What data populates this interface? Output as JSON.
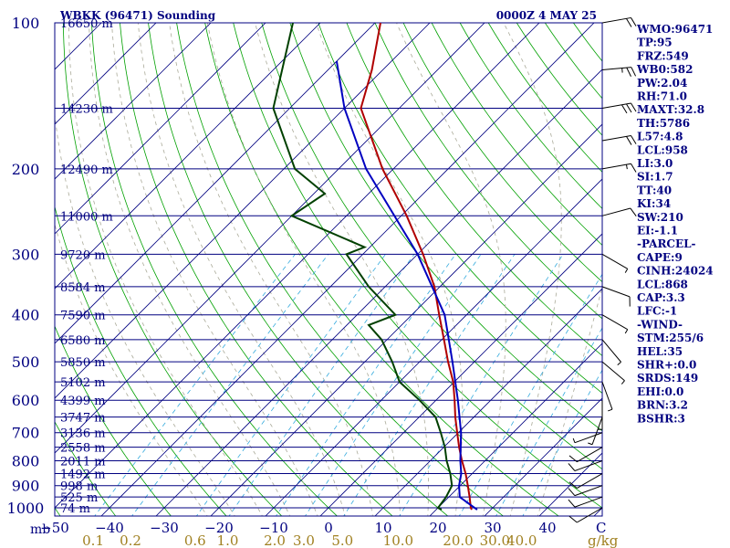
{
  "header": {
    "station": "WBKK (96471) Sounding",
    "time": "0000Z  4 MAY 25"
  },
  "colors": {
    "frame": "#000080",
    "temperature": "#b00000",
    "dewpoint": "#004000",
    "parcel": "#0000c0",
    "dry_adiabat": "#00a000",
    "moist_adiabat": "#aaaa99",
    "mixing_ratio": "#33aadd",
    "mixing_ratio_labels": "#a08020"
  },
  "chart_data": {
    "type": "line",
    "title": "WBKK (96471) Sounding",
    "xlabel": "",
    "ylabel": "mb",
    "pressure_ticks": [
      100,
      200,
      300,
      400,
      500,
      600,
      700,
      800,
      900,
      1000
    ],
    "temperature_ticks": [
      -50,
      -40,
      -30,
      -20,
      -10,
      0,
      10,
      20,
      30,
      40
    ],
    "temperature_axis_end_label": "C",
    "mixing_ratio_ticks": [
      "0.1",
      "0.2",
      "0.6",
      "1.0",
      "2.0",
      "3.0",
      "5.0",
      "10.0",
      "20.0",
      "30.0",
      "40.0"
    ],
    "mixing_ratio_values": [
      0.1,
      0.2,
      0.6,
      1.0,
      2.0,
      3.0,
      5.0,
      10.0,
      20.0,
      30.0,
      40.0
    ],
    "mixing_ratio_unit": "g/kg",
    "height_levels": [
      {
        "p": 100,
        "label": "16650 m"
      },
      {
        "p": 150,
        "label": "14230 m"
      },
      {
        "p": 200,
        "label": "12490 m"
      },
      {
        "p": 250,
        "label": "11000 m"
      },
      {
        "p": 300,
        "label": "9720 m"
      },
      {
        "p": 350,
        "label": "8584 m"
      },
      {
        "p": 400,
        "label": "7590 m"
      },
      {
        "p": 450,
        "label": "6580 m"
      },
      {
        "p": 500,
        "label": "5850 m"
      },
      {
        "p": 550,
        "label": "5102 m"
      },
      {
        "p": 600,
        "label": "4399 m"
      },
      {
        "p": 650,
        "label": "3747 m"
      },
      {
        "p": 700,
        "label": "3136 m"
      },
      {
        "p": 750,
        "label": "2558 m"
      },
      {
        "p": 800,
        "label": "2011 m"
      },
      {
        "p": 850,
        "label": "1492 m"
      },
      {
        "p": 900,
        "label": "998 m"
      },
      {
        "p": 950,
        "label": "525 m"
      },
      {
        "p": 1000,
        "label": "74 m"
      }
    ],
    "series": [
      {
        "name": "",
        "role": "temperature",
        "points": [
          {
            "p": 1009,
            "t": 26.5
          },
          {
            "p": 1000,
            "t": 26.0
          },
          {
            "p": 950,
            "t": 23.8
          },
          {
            "p": 900,
            "t": 21.4
          },
          {
            "p": 850,
            "t": 18.8
          },
          {
            "p": 800,
            "t": 15.8
          },
          {
            "p": 750,
            "t": 12.8
          },
          {
            "p": 700,
            "t": 9.8
          },
          {
            "p": 650,
            "t": 6.6
          },
          {
            "p": 600,
            "t": 3.4
          },
          {
            "p": 550,
            "t": -0.2
          },
          {
            "p": 500,
            "t": -4.8
          },
          {
            "p": 450,
            "t": -9.6
          },
          {
            "p": 400,
            "t": -15.0
          },
          {
            "p": 350,
            "t": -21.0
          },
          {
            "p": 300,
            "t": -29.0
          },
          {
            "p": 250,
            "t": -39.0
          },
          {
            "p": 200,
            "t": -52.0
          },
          {
            "p": 150,
            "t": -67.0
          },
          {
            "p": 125,
            "t": -72.0
          },
          {
            "p": 100,
            "t": -79.0
          }
        ]
      },
      {
        "name": "",
        "role": "dewpoint",
        "points": [
          {
            "p": 1009,
            "t": 21.0
          },
          {
            "p": 1000,
            "t": 20.0
          },
          {
            "p": 950,
            "t": 19.5
          },
          {
            "p": 900,
            "t": 18.5
          },
          {
            "p": 850,
            "t": 16.0
          },
          {
            "p": 800,
            "t": 13.0
          },
          {
            "p": 750,
            "t": 10.2
          },
          {
            "p": 700,
            "t": 6.8
          },
          {
            "p": 650,
            "t": 3.0
          },
          {
            "p": 600,
            "t": -3.0
          },
          {
            "p": 550,
            "t": -10.0
          },
          {
            "p": 500,
            "t": -15.0
          },
          {
            "p": 450,
            "t": -21.0
          },
          {
            "p": 420,
            "t": -26.0
          },
          {
            "p": 400,
            "t": -23.0
          },
          {
            "p": 350,
            "t": -33.0
          },
          {
            "p": 300,
            "t": -43.0
          },
          {
            "p": 290,
            "t": -41.0
          },
          {
            "p": 250,
            "t": -60.0
          },
          {
            "p": 225,
            "t": -58.0
          },
          {
            "p": 200,
            "t": -68.0
          },
          {
            "p": 150,
            "t": -83.0
          },
          {
            "p": 100,
            "t": -95.0
          }
        ]
      },
      {
        "name": "",
        "role": "parcel",
        "points": [
          {
            "p": 1009,
            "t": 27.5
          },
          {
            "p": 950,
            "t": 22.0
          },
          {
            "p": 900,
            "t": 19.8
          },
          {
            "p": 850,
            "t": 18.0
          },
          {
            "p": 800,
            "t": 15.5
          },
          {
            "p": 700,
            "t": 10.5
          },
          {
            "p": 600,
            "t": 4.0
          },
          {
            "p": 500,
            "t": -4.0
          },
          {
            "p": 400,
            "t": -14.0
          },
          {
            "p": 300,
            "t": -30.0
          },
          {
            "p": 200,
            "t": -55.0
          },
          {
            "p": 150,
            "t": -70.0
          },
          {
            "p": 120,
            "t": -80.0
          }
        ]
      }
    ],
    "wind_barbs": [
      {
        "p": 100,
        "dir": 80,
        "spd": 20
      },
      {
        "p": 125,
        "dir": 85,
        "spd": 25
      },
      {
        "p": 150,
        "dir": 80,
        "spd": 30
      },
      {
        "p": 175,
        "dir": 80,
        "spd": 20
      },
      {
        "p": 200,
        "dir": 80,
        "spd": 15
      },
      {
        "p": 250,
        "dir": 75,
        "spd": 10
      },
      {
        "p": 300,
        "dir": 120,
        "spd": 5
      },
      {
        "p": 350,
        "dir": 110,
        "spd": 10
      },
      {
        "p": 400,
        "dir": 120,
        "spd": 5
      },
      {
        "p": 450,
        "dir": 140,
        "spd": 5
      },
      {
        "p": 500,
        "dir": 130,
        "spd": 5
      },
      {
        "p": 550,
        "dir": 160,
        "spd": 5
      },
      {
        "p": 600,
        "dir": 180,
        "spd": 5
      },
      {
        "p": 650,
        "dir": 200,
        "spd": 5
      },
      {
        "p": 700,
        "dir": 250,
        "spd": 5
      },
      {
        "p": 750,
        "dir": 240,
        "spd": 10
      },
      {
        "p": 800,
        "dir": 250,
        "spd": 10
      },
      {
        "p": 850,
        "dir": 240,
        "spd": 10
      },
      {
        "p": 900,
        "dir": 250,
        "spd": 10
      },
      {
        "p": 950,
        "dir": 250,
        "spd": 10
      },
      {
        "p": 1000,
        "dir": 240,
        "spd": 10
      }
    ]
  },
  "indices": [
    "WMO:96471",
    "TP:95",
    "FRZ:549",
    "WB0:582",
    "PW:2.04",
    "RH:71.0",
    "MAXT:32.8",
    "TH:5786",
    "L57:4.8",
    "LCL:958",
    "LI:3.0",
    "SI:1.7",
    "TT:40",
    "KI:34",
    "SW:210",
    "EI:-1.1",
    "-PARCEL-",
    "CAPE:9",
    "CINH:24024",
    "LCL:868",
    "CAP:3.3",
    "LFC:-1",
    "-WIND-",
    "STM:255/6",
    "HEL:35",
    "SHR+:0.0",
    "SRDS:149",
    "EHI:0.0",
    "BRN:3.2",
    "BSHR:3"
  ]
}
